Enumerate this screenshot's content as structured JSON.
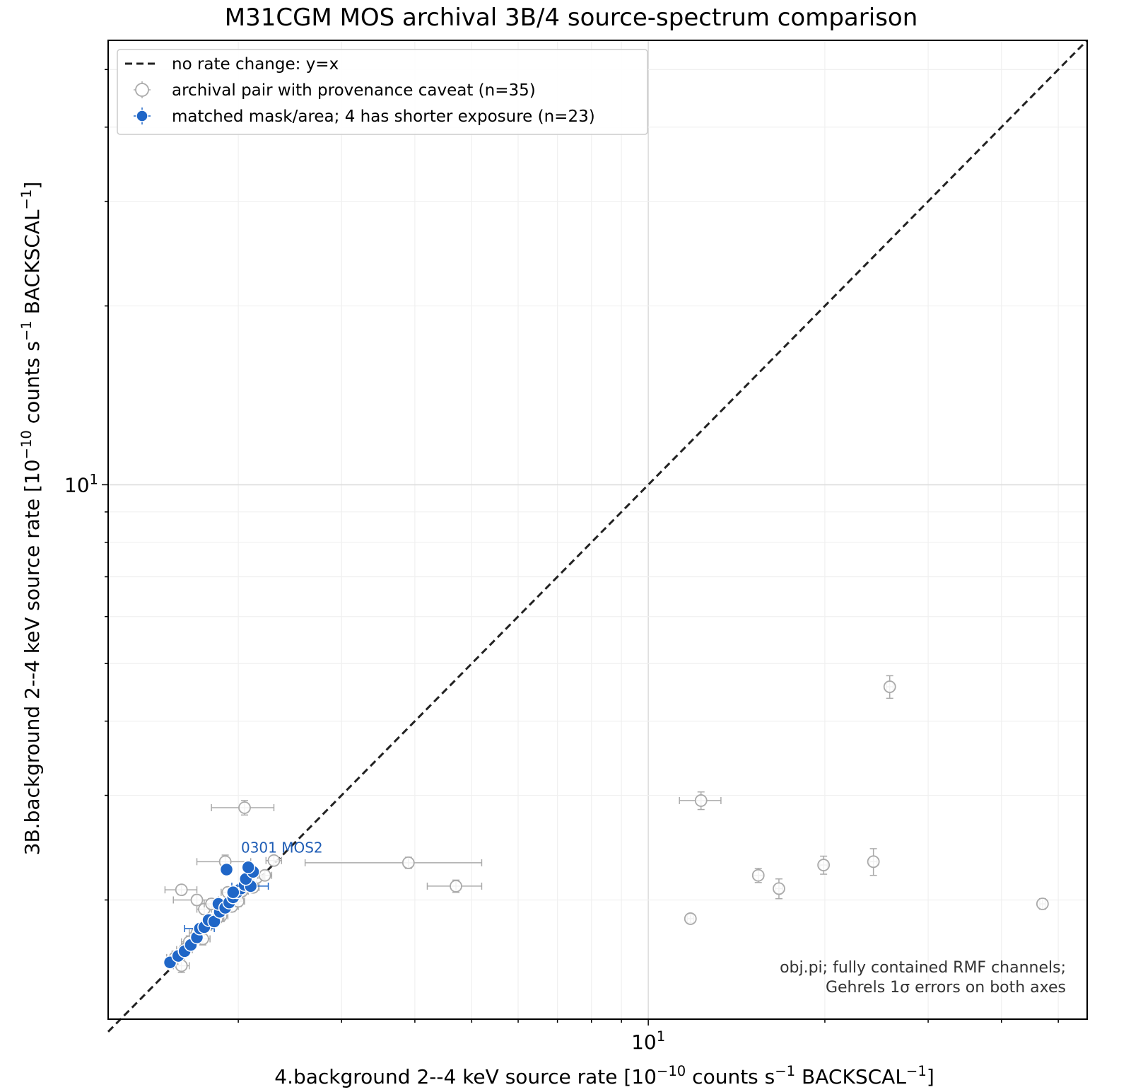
{
  "chart_data": {
    "type": "scatter",
    "title": "M31CGM MOS archival 3B/4 source-spectrum comparison",
    "xlabel": "4.background 2--4 keV source rate  [10^-10 counts s^-1 BACKSCAL^-1]",
    "ylabel": "3B.background 2--4 keV source rate  [10^-10 counts s^-1 BACKSCAL^-1]",
    "xscale": "log",
    "yscale": "log",
    "xlim": [
      1.2,
      56
    ],
    "ylim": [
      1.26,
      56
    ],
    "x_tick_labels": [
      {
        "value": 10,
        "label": "10^1"
      }
    ],
    "y_tick_labels": [
      {
        "value": 10,
        "label": "10^1"
      }
    ],
    "grid": true,
    "legend": {
      "placement": "top-left",
      "entries": [
        {
          "label": "no rate change: y=x",
          "style": "dashed-line",
          "color": "#222222"
        },
        {
          "label": "archival pair with provenance caveat (n=35)",
          "style": "open-circle",
          "color": "#aaaaaa"
        },
        {
          "label": "matched mask/area; 4 has shorter exposure (n=23)",
          "style": "filled-circle",
          "color": "#1f66c7"
        }
      ]
    },
    "reference_line": {
      "label": "no rate change: y=x",
      "x": [
        1.2,
        56
      ],
      "y": [
        1.2,
        56
      ]
    },
    "annotation_note": [
      "obj.pi; fully contained RMF channels;",
      "Gehrels 1σ errors on both axes"
    ],
    "point_label": {
      "text": "0301 MOS2",
      "x": 2.05,
      "y": 2.45,
      "color": "#1f5db5"
    },
    "series": [
      {
        "name": "archival pair with provenance caveat (n=35)",
        "marker": "open-circle",
        "color": "#aaaaaa",
        "points": [
          {
            "x": 12.3,
            "y": 2.94,
            "xerr": 1.0,
            "yerr": 0.1
          },
          {
            "x": 11.8,
            "y": 1.86,
            "xerr": 0.15,
            "yerr": 0.03
          },
          {
            "x": 15.4,
            "y": 2.2,
            "xerr": 0.3,
            "yerr": 0.06
          },
          {
            "x": 16.7,
            "y": 2.09,
            "xerr": 0.25,
            "yerr": 0.08
          },
          {
            "x": 19.9,
            "y": 2.29,
            "xerr": 0.3,
            "yerr": 0.08
          },
          {
            "x": 24.2,
            "y": 2.32,
            "xerr": 0.35,
            "yerr": 0.12
          },
          {
            "x": 25.8,
            "y": 4.57,
            "xerr": 0.35,
            "yerr": 0.2
          },
          {
            "x": 47.0,
            "y": 1.97,
            "xerr": 0.5,
            "yerr": 0.04
          },
          {
            "x": 4.7,
            "y": 2.11,
            "xerr": 0.5,
            "yerr": 0.05
          },
          {
            "x": 3.9,
            "y": 2.31,
            "xerr": 1.3,
            "yerr": 0.05
          },
          {
            "x": 2.05,
            "y": 2.86,
            "xerr": 0.25,
            "yerr": 0.08
          },
          {
            "x": 1.9,
            "y": 2.32,
            "xerr": 0.2,
            "yerr": 0.06
          },
          {
            "x": 1.6,
            "y": 2.08,
            "xerr": 0.1,
            "yerr": 0.04
          },
          {
            "x": 1.7,
            "y": 2.0,
            "xerr": 0.15,
            "yerr": 0.04
          },
          {
            "x": 1.6,
            "y": 1.55,
            "xerr": 0.05,
            "yerr": 0.04
          },
          {
            "x": 1.75,
            "y": 1.93,
            "xerr": 0.05,
            "yerr": 0.04
          },
          {
            "x": 1.8,
            "y": 1.97,
            "xerr": 0.05,
            "yerr": 0.04
          },
          {
            "x": 1.87,
            "y": 1.88,
            "xerr": 0.05,
            "yerr": 0.04
          },
          {
            "x": 1.92,
            "y": 2.06,
            "xerr": 0.05,
            "yerr": 0.04
          },
          {
            "x": 1.98,
            "y": 2.02,
            "xerr": 0.05,
            "yerr": 0.04
          },
          {
            "x": 2.03,
            "y": 2.07,
            "xerr": 0.05,
            "yerr": 0.04
          },
          {
            "x": 2.08,
            "y": 2.15,
            "xerr": 0.05,
            "yerr": 0.04
          },
          {
            "x": 2.15,
            "y": 2.18,
            "xerr": 0.06,
            "yerr": 0.04
          },
          {
            "x": 2.22,
            "y": 2.2,
            "xerr": 0.06,
            "yerr": 0.04
          },
          {
            "x": 2.3,
            "y": 2.33,
            "xerr": 0.07,
            "yerr": 0.04
          },
          {
            "x": 1.65,
            "y": 1.7,
            "xerr": 0.05,
            "yerr": 0.04
          },
          {
            "x": 1.7,
            "y": 1.76,
            "xerr": 0.05,
            "yerr": 0.04
          },
          {
            "x": 1.78,
            "y": 1.82,
            "xerr": 0.05,
            "yerr": 0.04
          },
          {
            "x": 1.84,
            "y": 1.86,
            "xerr": 0.05,
            "yerr": 0.04
          },
          {
            "x": 1.95,
            "y": 1.95,
            "xerr": 0.05,
            "yerr": 0.04
          },
          {
            "x": 2.0,
            "y": 1.99,
            "xerr": 0.05,
            "yerr": 0.04
          },
          {
            "x": 2.12,
            "y": 2.1,
            "xerr": 0.05,
            "yerr": 0.04
          },
          {
            "x": 1.56,
            "y": 1.6,
            "xerr": 0.05,
            "yerr": 0.04
          },
          {
            "x": 1.62,
            "y": 1.65,
            "xerr": 0.05,
            "yerr": 0.04
          },
          {
            "x": 1.74,
            "y": 1.72,
            "xerr": 0.05,
            "yerr": 0.04
          }
        ]
      },
      {
        "name": "matched mask/area; 4 has shorter exposure (n=23)",
        "marker": "filled-circle",
        "color": "#1f66c7",
        "points": [
          {
            "x": 1.53,
            "y": 1.57,
            "xerr": 0.03,
            "yerr": 0.02
          },
          {
            "x": 1.58,
            "y": 1.61,
            "xerr": 0.03,
            "yerr": 0.02
          },
          {
            "x": 1.62,
            "y": 1.64,
            "xerr": 0.03,
            "yerr": 0.02
          },
          {
            "x": 1.66,
            "y": 1.68,
            "xerr": 0.03,
            "yerr": 0.02
          },
          {
            "x": 1.7,
            "y": 1.73,
            "xerr": 0.03,
            "yerr": 0.02
          },
          {
            "x": 1.72,
            "y": 1.79,
            "xerr": 0.1,
            "yerr": 0.03
          },
          {
            "x": 1.75,
            "y": 1.8,
            "xerr": 0.03,
            "yerr": 0.02
          },
          {
            "x": 1.78,
            "y": 1.85,
            "xerr": 0.03,
            "yerr": 0.02
          },
          {
            "x": 1.82,
            "y": 1.84,
            "xerr": 0.03,
            "yerr": 0.02
          },
          {
            "x": 1.86,
            "y": 1.91,
            "xerr": 0.04,
            "yerr": 0.02
          },
          {
            "x": 1.85,
            "y": 1.97,
            "xerr": 0.04,
            "yerr": 0.02
          },
          {
            "x": 1.9,
            "y": 1.94,
            "xerr": 0.04,
            "yerr": 0.02
          },
          {
            "x": 1.93,
            "y": 1.98,
            "xerr": 0.04,
            "yerr": 0.02
          },
          {
            "x": 1.96,
            "y": 2.02,
            "xerr": 0.04,
            "yerr": 0.02
          },
          {
            "x": 1.99,
            "y": 2.06,
            "xerr": 0.04,
            "yerr": 0.02
          },
          {
            "x": 2.02,
            "y": 2.09,
            "xerr": 0.04,
            "yerr": 0.02
          },
          {
            "x": 2.05,
            "y": 2.12,
            "xerr": 0.04,
            "yerr": 0.02
          },
          {
            "x": 2.1,
            "y": 2.11,
            "xerr": 0.15,
            "yerr": 0.03
          },
          {
            "x": 2.06,
            "y": 2.17,
            "xerr": 0.04,
            "yerr": 0.02
          },
          {
            "x": 2.12,
            "y": 2.23,
            "xerr": 0.04,
            "yerr": 0.02
          },
          {
            "x": 2.08,
            "y": 2.27,
            "xerr": 0.04,
            "yerr": 0.02
          },
          {
            "x": 1.96,
            "y": 2.06,
            "xerr": 0.04,
            "yerr": 0.02
          },
          {
            "x": 1.91,
            "y": 2.25,
            "xerr": 0.04,
            "yerr": 0.02
          }
        ]
      }
    ]
  }
}
